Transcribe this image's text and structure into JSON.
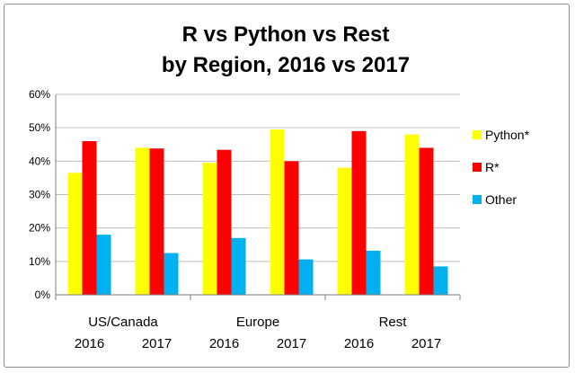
{
  "chart_data": {
    "type": "bar",
    "title_lines": [
      "R vs Python vs Rest",
      "by Region, 2016 vs 2017"
    ],
    "groups": [
      {
        "label": "US/Canada",
        "years": [
          "2016",
          "2017"
        ]
      },
      {
        "label": "Europe",
        "years": [
          "2016",
          "2017"
        ]
      },
      {
        "label": "Rest",
        "years": [
          "2016",
          "2017"
        ]
      }
    ],
    "categories": [
      "US/Canada 2016",
      "US/Canada 2017",
      "Europe 2016",
      "Europe 2017",
      "Rest 2016",
      "Rest 2017"
    ],
    "series": [
      {
        "name": "Python*",
        "color": "#ffff00",
        "values": [
          36.5,
          44,
          39.5,
          49.5,
          38,
          48
        ]
      },
      {
        "name": "R*",
        "color": "#ff0000",
        "values": [
          46,
          43.8,
          43.4,
          40,
          49,
          44
        ]
      },
      {
        "name": "Other",
        "color": "#00b0f0",
        "values": [
          18,
          12.5,
          17,
          10.6,
          13.2,
          8.5
        ]
      }
    ],
    "yticks": [
      "0%",
      "10%",
      "20%",
      "30%",
      "40%",
      "50%",
      "60%"
    ],
    "ylim": [
      0,
      60
    ],
    "grid": true,
    "legend_position": "right"
  }
}
